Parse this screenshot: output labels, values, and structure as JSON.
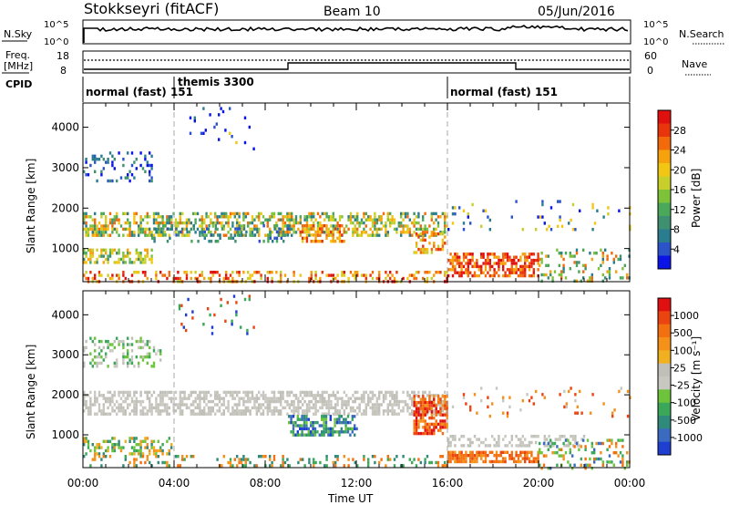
{
  "header": {
    "station": "Stokkseyri (fitACF)",
    "beam": "Beam 10",
    "date": "05/Jun/2016"
  },
  "nsky_panel": {
    "left_label": "N.Sky",
    "left_ticks": [
      "10^5",
      "10^0"
    ],
    "right_ticks": [
      "10^5",
      "10^0"
    ],
    "right_label": "N.Search"
  },
  "freq_panel": {
    "left_label_1": "Freq.",
    "left_label_2": "[MHz]",
    "left_ticks": [
      "18",
      "8"
    ],
    "right_ticks": [
      "60",
      "0"
    ],
    "right_label": "Nave"
  },
  "cpid": {
    "label": "CPID",
    "segments": [
      {
        "name": "normal (fast) 151",
        "start_h": 0
      },
      {
        "name": "themis 3300",
        "start_h": 4
      },
      {
        "name": "normal (fast) 151",
        "start_h": 16
      }
    ]
  },
  "chart_data": [
    {
      "type": "heatmap",
      "quantity": "Power",
      "ylabel": "Slant Range [km]",
      "xlabel": "Time UT",
      "x_ticks": [
        "00:00",
        "04:00",
        "08:00",
        "12:00",
        "16:00",
        "20:00",
        "00:00"
      ],
      "y_ticks": [
        "4000",
        "3000",
        "2000",
        "1000"
      ],
      "xlim_hours": [
        0,
        24
      ],
      "ylim_km": [
        180,
        4600
      ],
      "colorbar": {
        "label": "Power [dB]",
        "ticks": [
          "28",
          "24",
          "20",
          "16",
          "12",
          "8",
          "4"
        ],
        "colors": [
          "#0a14e6",
          "#2b54c9",
          "#2a7d8f",
          "#3f9070",
          "#4aa85a",
          "#7ec23a",
          "#c9cf2a",
          "#f2c714",
          "#f5a20d",
          "#f26a0a",
          "#e8350c",
          "#e0100e"
        ]
      },
      "bands": [
        {
          "h0": 0.0,
          "h1": 3.0,
          "r0": 2700,
          "r1": 3400,
          "density": 0.25,
          "levels": [
            0,
            1,
            2,
            3
          ]
        },
        {
          "h0": 0.0,
          "h1": 16.0,
          "r0": 1350,
          "r1": 1900,
          "density": 0.5,
          "levels": [
            2,
            3,
            4,
            5,
            6,
            7,
            8,
            9
          ]
        },
        {
          "h0": 0.0,
          "h1": 3.0,
          "r0": 650,
          "r1": 1000,
          "density": 0.55,
          "levels": [
            3,
            4,
            5,
            6,
            7,
            8
          ]
        },
        {
          "h0": 3.0,
          "h1": 9.0,
          "r0": 1150,
          "r1": 1600,
          "density": 0.2,
          "levels": [
            1,
            2,
            3,
            4
          ]
        },
        {
          "h0": 9.5,
          "h1": 11.5,
          "r0": 1150,
          "r1": 1600,
          "density": 0.55,
          "levels": [
            7,
            8,
            9,
            10
          ]
        },
        {
          "h0": 14.5,
          "h1": 16.0,
          "r0": 900,
          "r1": 1400,
          "density": 0.4,
          "levels": [
            6,
            7,
            8,
            9,
            10
          ]
        },
        {
          "h0": 0.0,
          "h1": 16.0,
          "r0": 200,
          "r1": 450,
          "density": 0.3,
          "levels": [
            6,
            7,
            8,
            9,
            10,
            11
          ]
        },
        {
          "h0": 16.0,
          "h1": 20.0,
          "r0": 300,
          "r1": 900,
          "density": 0.6,
          "levels": [
            8,
            9,
            10,
            11
          ]
        },
        {
          "h0": 20.0,
          "h1": 24.0,
          "r0": 200,
          "r1": 1000,
          "density": 0.2,
          "levels": [
            2,
            3,
            4,
            5,
            8,
            9
          ]
        },
        {
          "h0": 16.0,
          "h1": 24.0,
          "r0": 1500,
          "r1": 2200,
          "density": 0.06,
          "levels": [
            0,
            1,
            2,
            6,
            7
          ]
        },
        {
          "h0": 4.0,
          "h1": 7.5,
          "r0": 3500,
          "r1": 4500,
          "density": 0.04,
          "levels": [
            0,
            1,
            2,
            7
          ]
        }
      ]
    },
    {
      "type": "heatmap",
      "quantity": "Velocity",
      "ylabel": "Slant Range [km]",
      "xlabel": "Time UT",
      "x_ticks": [
        "00:00",
        "04:00",
        "08:00",
        "12:00",
        "16:00",
        "20:00",
        "00:00"
      ],
      "y_ticks": [
        "4000",
        "3000",
        "2000",
        "1000"
      ],
      "xlim_hours": [
        0,
        24
      ],
      "ylim_km": [
        180,
        4600
      ],
      "colorbar": {
        "label": "Velocity [m s⁻¹]",
        "ticks": [
          "1000",
          "500",
          "100",
          "25",
          "-25",
          "-100",
          "-500",
          "-1000"
        ],
        "colors": [
          "#1f3fd0",
          "#3a6bc0",
          "#2e8a7a",
          "#3aa858",
          "#6dc43c",
          "#c8c8c0",
          "#c0c0b8",
          "#f0b020",
          "#f59018",
          "#f27010",
          "#ec4410",
          "#e01010"
        ]
      },
      "bands": [
        {
          "h0": 0.0,
          "h1": 3.5,
          "r0": 2700,
          "r1": 3450,
          "density": 0.3,
          "levels": [
            5,
            6,
            3,
            4
          ]
        },
        {
          "h0": 0.0,
          "h1": 16.0,
          "r0": 1500,
          "r1": 2100,
          "density": 0.6,
          "levels": [
            5,
            6,
            6,
            5
          ]
        },
        {
          "h0": 9.0,
          "h1": 12.0,
          "r0": 1000,
          "r1": 1500,
          "density": 0.6,
          "levels": [
            0,
            1,
            2,
            3,
            4
          ]
        },
        {
          "h0": 14.5,
          "h1": 16.0,
          "r0": 1000,
          "r1": 2000,
          "density": 0.6,
          "levels": [
            9,
            10,
            11,
            8
          ]
        },
        {
          "h0": 0.0,
          "h1": 4.0,
          "r0": 550,
          "r1": 950,
          "density": 0.45,
          "levels": [
            3,
            4,
            7,
            8,
            2
          ]
        },
        {
          "h0": 16.0,
          "h1": 20.0,
          "r0": 350,
          "r1": 600,
          "density": 0.7,
          "levels": [
            8,
            9,
            9,
            10
          ]
        },
        {
          "h0": 16.0,
          "h1": 22.0,
          "r0": 700,
          "r1": 1000,
          "density": 0.4,
          "levels": [
            5,
            6
          ]
        },
        {
          "h0": 20.0,
          "h1": 24.0,
          "r0": 200,
          "r1": 900,
          "density": 0.25,
          "levels": [
            3,
            4,
            8,
            9,
            1
          ]
        },
        {
          "h0": 0.0,
          "h1": 16.0,
          "r0": 200,
          "r1": 500,
          "density": 0.25,
          "levels": [
            2,
            3,
            8,
            9
          ]
        },
        {
          "h0": 4.0,
          "h1": 7.5,
          "r0": 3500,
          "r1": 4500,
          "density": 0.04,
          "levels": [
            0,
            3,
            10
          ]
        },
        {
          "h0": 16.0,
          "h1": 24.0,
          "r0": 1500,
          "r1": 2200,
          "density": 0.06,
          "levels": [
            5,
            8,
            10
          ]
        }
      ]
    }
  ]
}
